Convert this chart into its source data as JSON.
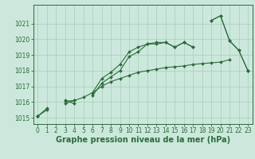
{
  "xlabel": "Graphe pression niveau de la mer (hPa)",
  "background_color": "#cce8dc",
  "grid_color": "#a8ccbb",
  "line_color": "#2d6b3c",
  "hours": [
    0,
    1,
    2,
    3,
    4,
    5,
    6,
    7,
    8,
    9,
    10,
    11,
    12,
    13,
    14,
    15,
    16,
    17,
    18,
    19,
    20,
    21,
    22,
    23
  ],
  "s1": [
    1015.1,
    1015.6,
    null,
    1015.9,
    1016.1,
    null,
    1016.6,
    1017.5,
    1017.9,
    1018.4,
    1019.2,
    1019.5,
    1019.7,
    1019.8,
    1019.8,
    1019.5,
    1019.8,
    1019.5,
    null,
    1021.2,
    1021.5,
    1019.9,
    1019.3,
    1018.0
  ],
  "s2": [
    1015.1,
    null,
    null,
    1016.1,
    1015.9,
    null,
    1016.4,
    1017.2,
    1017.6,
    1018.0,
    1018.9,
    1019.2,
    1019.7,
    1019.7,
    1019.8,
    1019.5,
    1019.8,
    1019.5,
    null,
    1021.2,
    1021.5,
    1019.9,
    1019.3,
    1018.0
  ],
  "s3": [
    1015.1,
    1015.5,
    null,
    1016.05,
    1016.1,
    1016.3,
    1016.6,
    1017.0,
    1017.3,
    1017.5,
    1017.7,
    1017.9,
    1018.0,
    1018.1,
    1018.2,
    1018.25,
    1018.3,
    1018.4,
    1018.45,
    1018.5,
    1018.55,
    1018.7,
    null,
    1018.0
  ],
  "ylim": [
    1014.6,
    1022.2
  ],
  "yticks": [
    1015,
    1016,
    1017,
    1018,
    1019,
    1020,
    1021
  ],
  "xticks": [
    0,
    1,
    2,
    3,
    4,
    5,
    6,
    7,
    8,
    9,
    10,
    11,
    12,
    13,
    14,
    15,
    16,
    17,
    18,
    19,
    20,
    21,
    22,
    23
  ],
  "fontsize_xlabel": 7.0,
  "fontsize_ticks": 5.5
}
